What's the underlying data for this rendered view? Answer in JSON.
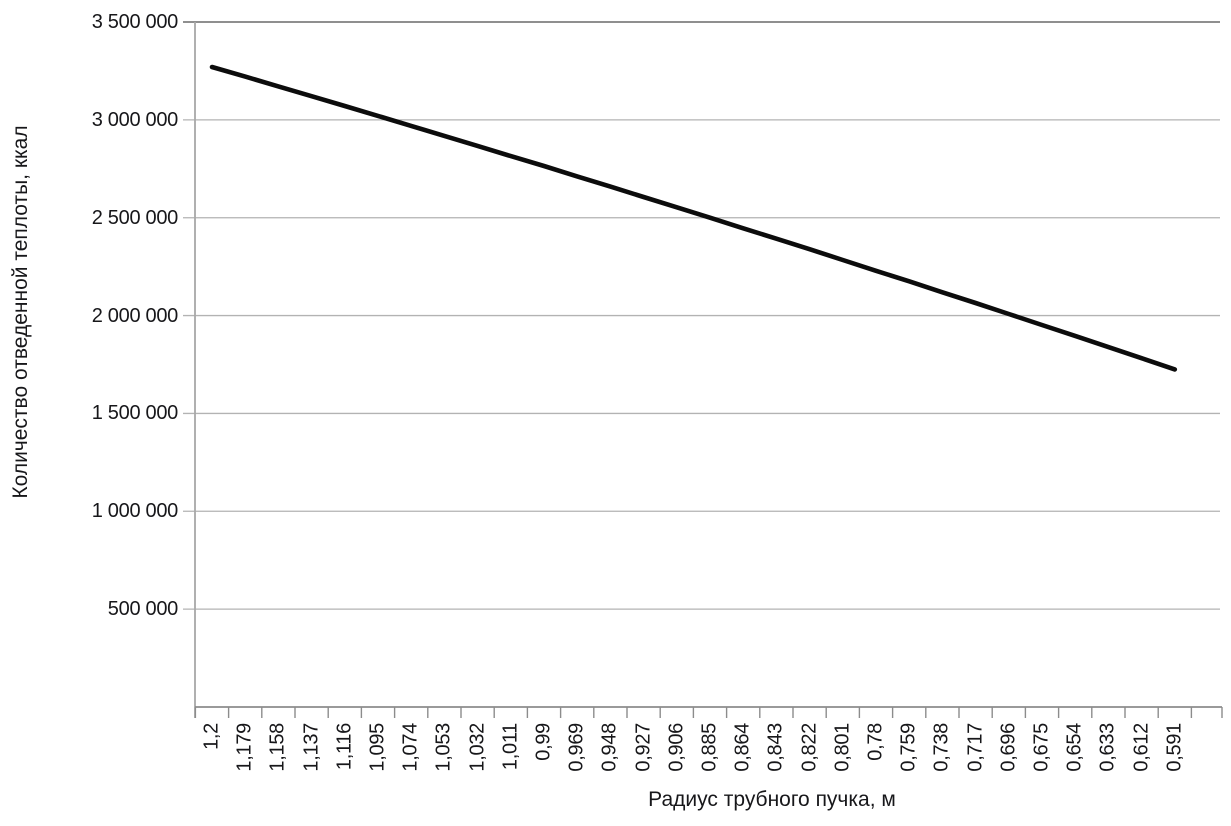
{
  "chart_data": {
    "type": "line",
    "title": "",
    "xlabel": "Радиус трубного пучка, м",
    "ylabel": "Количество отведенной теплоты, ккал",
    "categories": [
      "1,2",
      "1,179",
      "1,158",
      "1,137",
      "1,116",
      "1,095",
      "1,074",
      "1,053",
      "1,032",
      "1,011",
      "0,99",
      "0,969",
      "0,948",
      "0,927",
      "0,906",
      "0,885",
      "0,864",
      "0,843",
      "0,822",
      "0,801",
      "0,78",
      "0,759",
      "0,738",
      "0,717",
      "0,696",
      "0,675",
      "0,654",
      "0,633",
      "0,612",
      "0,591"
    ],
    "values": [
      3270000,
      3221000,
      3171000,
      3121000,
      3071000,
      3020000,
      2969000,
      2918000,
      2867000,
      2815000,
      2764000,
      2711000,
      2659000,
      2606000,
      2553000,
      2500000,
      2446000,
      2393000,
      2339000,
      2284000,
      2229000,
      2175000,
      2119000,
      2064000,
      2008000,
      1952000,
      1896000,
      1839000,
      1782000,
      1725000
    ],
    "yticks": [
      {
        "value": 500000,
        "label": "500 000"
      },
      {
        "value": 1000000,
        "label": "1 000 000"
      },
      {
        "value": 1500000,
        "label": "1 500 000"
      },
      {
        "value": 2000000,
        "label": "2 000 000"
      },
      {
        "value": 2500000,
        "label": "2 500 000"
      },
      {
        "value": 3000000,
        "label": "3 000 000"
      },
      {
        "value": 3500000,
        "label": "3 500 000"
      }
    ],
    "ylim": [
      0,
      3500000
    ],
    "grid": "horizontal",
    "legend": "none",
    "colors": {
      "line": "#0c0c0c",
      "gridline": "#b3b3b3",
      "top_gridline": "#7f7f7f",
      "y_axis": "#a8a8a8",
      "x_axis": "#8c8c8c",
      "tick": "#8c8c8c",
      "text": "#17171a",
      "background": "#ffffff"
    }
  }
}
